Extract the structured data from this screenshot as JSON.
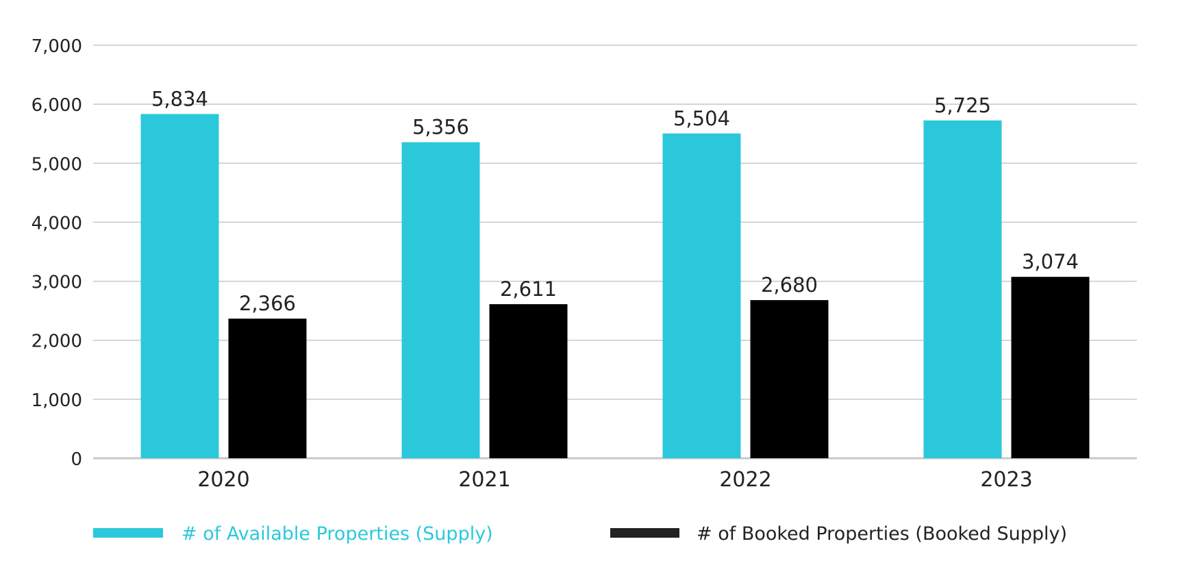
{
  "chart_data": {
    "type": "bar",
    "title": "",
    "xlabel": "",
    "ylabel": "",
    "categories": [
      "2020",
      "2021",
      "2022",
      "2023"
    ],
    "series": [
      {
        "name": "# of Available Properties (Supply)",
        "values": [
          5834,
          5356,
          5504,
          5725
        ],
        "labels": [
          "5,834",
          "5,356",
          "5,504",
          "5,725"
        ],
        "color": "#2BC8DB"
      },
      {
        "name": "# of Booked Properties (Booked Supply)",
        "values": [
          2366,
          2611,
          2680,
          3074
        ],
        "labels": [
          "2,366",
          "2,611",
          "2,680",
          "3,074"
        ],
        "color": "#000000"
      }
    ],
    "ylim": [
      0,
      7000
    ],
    "yticks": [
      0,
      1000,
      2000,
      3000,
      4000,
      5000,
      6000,
      7000
    ],
    "ytick_labels": [
      "0",
      "1,000",
      "2,000",
      "3,000",
      "4,000",
      "5,000",
      "6,000",
      "7,000"
    ],
    "grid": true,
    "legend_position": "bottom",
    "gridline_color": "#C8C8C8",
    "text_color": "#222222"
  }
}
